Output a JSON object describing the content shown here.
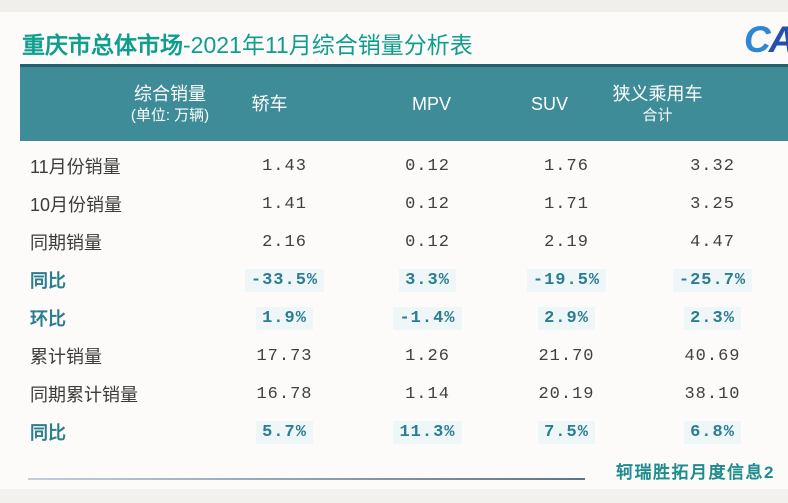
{
  "page": {
    "title_bold": "重庆市总体市场",
    "title_rest": "-2021年11月综合销量分析表",
    "logo_text_part1": "C",
    "logo_text_part2": "AE",
    "footer_note": "轲瑞胜拓月度信息2"
  },
  "colors": {
    "title_teal": "#0d9e8e",
    "header_bg": "#3e8c98",
    "header_border": "#24616d",
    "highlight_teal": "#2b7d90",
    "value_dark": "#404040",
    "logo_blue": "#2350ae",
    "footer_teal": "#1f8b8e"
  },
  "chart_data": {
    "type": "table",
    "title": "重庆市总体市场-2021年11月综合销量分析表",
    "unit_note": "(单位: 万辆)",
    "columns": [
      {
        "id": "zonghe-xiaoliang",
        "line1": "综合销量",
        "line2": "(单位: 万辆)"
      },
      {
        "id": "jiaoche",
        "line1": "轿车",
        "line2": ""
      },
      {
        "id": "mpv",
        "line1": "MPV",
        "line2": ""
      },
      {
        "id": "suv",
        "line1": "SUV",
        "line2": ""
      },
      {
        "id": "xiayi-chengyongche-heji",
        "line1": "狭义乘用车",
        "line2": "合计"
      }
    ],
    "rows": [
      {
        "label": "11月份销量",
        "values": [
          "1.43",
          "0.12",
          "1.76",
          "3.32"
        ],
        "highlight": false
      },
      {
        "label": "10月份销量",
        "values": [
          "1.41",
          "0.12",
          "1.71",
          "3.25"
        ],
        "highlight": false
      },
      {
        "label": "同期销量",
        "values": [
          "2.16",
          "0.12",
          "2.19",
          "4.47"
        ],
        "highlight": false
      },
      {
        "label": "同比",
        "values": [
          "-33.5%",
          "3.3%",
          "-19.5%",
          "-25.7%"
        ],
        "highlight": true
      },
      {
        "label": "环比",
        "values": [
          "1.9%",
          "-1.4%",
          "2.9%",
          "2.3%"
        ],
        "highlight": true
      },
      {
        "label": "累计销量",
        "values": [
          "17.73",
          "1.26",
          "21.70",
          "40.69"
        ],
        "highlight": false
      },
      {
        "label": "同期累计销量",
        "values": [
          "16.78",
          "1.14",
          "20.19",
          "38.10"
        ],
        "highlight": false
      },
      {
        "label": "同比",
        "values": [
          "5.7%",
          "11.3%",
          "7.5%",
          "6.8%"
        ],
        "highlight": true
      }
    ]
  }
}
